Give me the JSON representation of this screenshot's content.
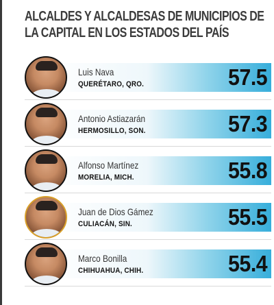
{
  "title_line_1": "ALCALDES Y ALCALDESAS DE MUNICIPIOS DE",
  "title_line_2": "LA CAPITAL EN LOS ESTADOS DEL PAÍS",
  "colors": {
    "text": "#111111",
    "band_accent": "#37aedb",
    "divider": "#d8d8d8"
  },
  "chart_data": {
    "type": "table",
    "title": "ALCALDES Y ALCALDESAS DE MUNICIPIOS DE LA CAPITAL EN LOS ESTADOS DEL PAÍS",
    "rows": [
      {
        "name": "Luis Nava",
        "place": "QUERÉTARO, QRO.",
        "score": "57.5",
        "value": 57.5
      },
      {
        "name": "Antonio Astiazarán",
        "place": "HERMOSILLO, SON.",
        "score": "57.3",
        "value": 57.3
      },
      {
        "name": "Alfonso Martínez",
        "place": "MORELIA, MICH.",
        "score": "55.8",
        "value": 55.8
      },
      {
        "name": "Juan de Dios Gámez",
        "place": "CULIACÁN, SIN.",
        "score": "55.5",
        "value": 55.5
      },
      {
        "name": "Marco Bonilla",
        "place": "CHIHUAHUA, CHIH.",
        "score": "55.4",
        "value": 55.4
      }
    ]
  }
}
